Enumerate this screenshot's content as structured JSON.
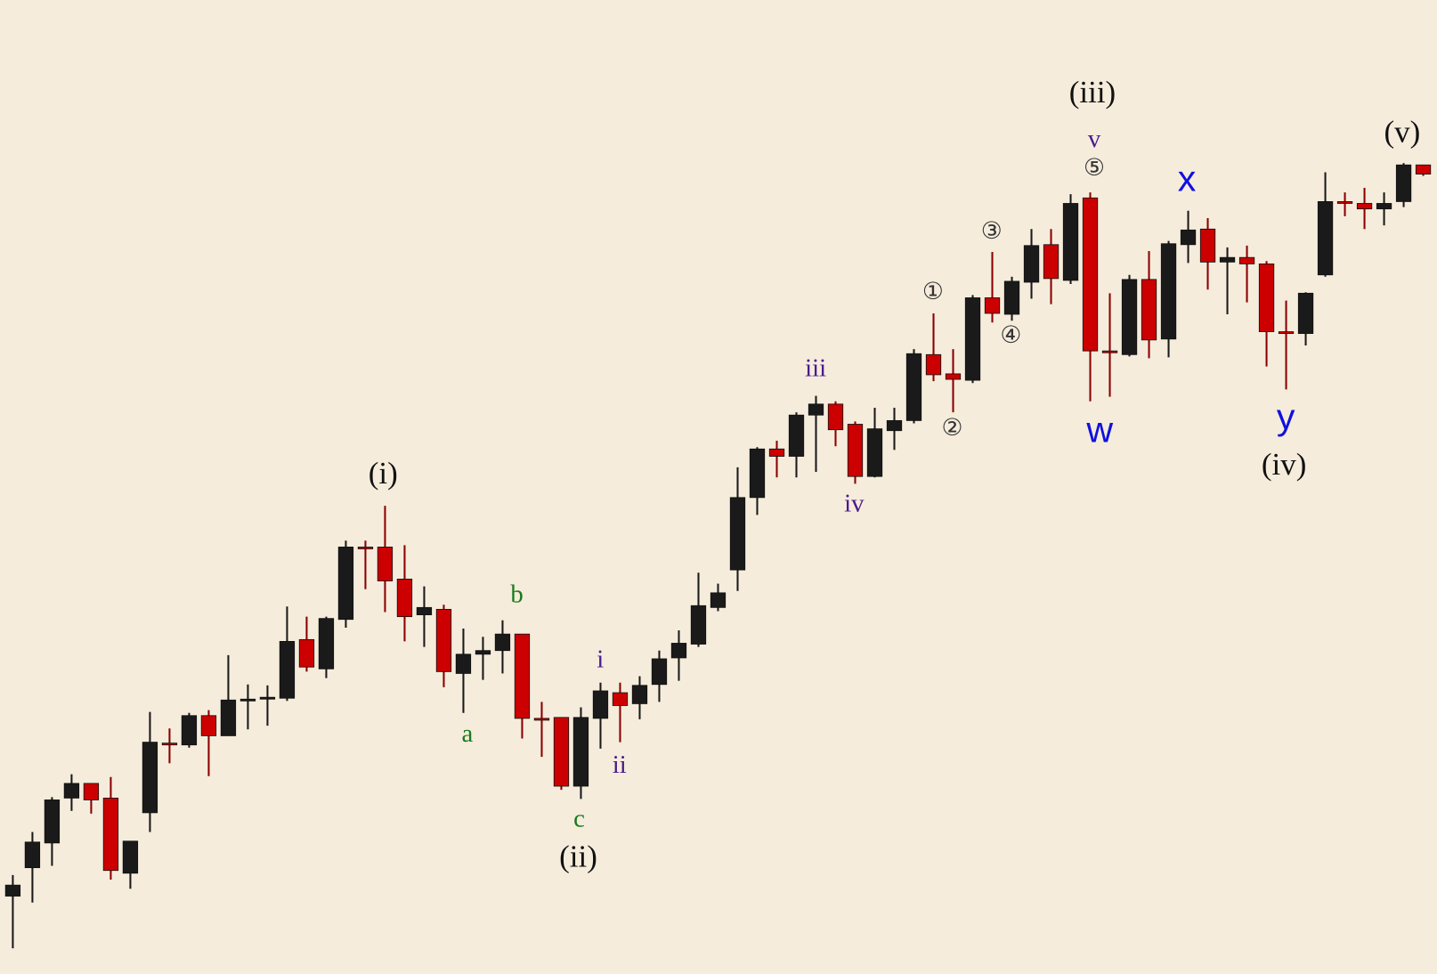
{
  "chart_data": {
    "type": "candlestick",
    "ylim": [
      0,
      1063
    ],
    "background": "#f5ecdc",
    "up_color": "#1a1a1a",
    "down_color": "#cc0000",
    "up_wick_color": "#1a1a1a",
    "down_wick_color": "#8b0000",
    "series": [
      {
        "open": [
          85,
          116,
          143,
          192,
          208,
          192,
          110,
          176,
          252,
          250,
          282,
          260,
          298,
          300,
          301,
          365,
          333,
          387,
          466,
          466,
          431,
          392,
          398,
          328,
          349,
          353,
          371,
          279,
          280,
          205,
          279,
          307,
          295,
          316,
          345,
          360,
          400,
          441,
          520,
          573,
          565,
          610,
          622,
          600,
          543,
          593,
          604,
          676,
          655,
          648,
          738,
          720,
          755,
          796,
          757,
          847,
          680,
          676,
          758,
          693,
          796,
          813,
          777,
          782,
          775,
          701,
          699,
          763,
          843,
          841,
          835,
          843,
          883
        ],
        "high": [
          108,
          155,
          193,
          218,
          208,
          215,
          145,
          286,
          268,
          285,
          288,
          348,
          316,
          315,
          401,
          390,
          390,
          473,
          473,
          511,
          468,
          423,
          403,
          377,
          368,
          386,
          371,
          297,
          280,
          291,
          318,
          318,
          325,
          353,
          375,
          438,
          426,
          553,
          575,
          582,
          613,
          631,
          625,
          603,
          618,
          618,
          682,
          721,
          682,
          741,
          788,
          761,
          813,
          813,
          851,
          853,
          743,
          763,
          789,
          800,
          833,
          825,
          793,
          795,
          778,
          735,
          744,
          875,
          853,
          858,
          853,
          885,
          883
        ],
        "low": [
          28,
          78,
          118,
          178,
          175,
          103,
          93,
          155,
          230,
          247,
          216,
          260,
          267,
          271,
          298,
          330,
          323,
          378,
          420,
          395,
          363,
          357,
          313,
          285,
          321,
          328,
          257,
          237,
          201,
          191,
          246,
          253,
          278,
          297,
          320,
          357,
          396,
          418,
          501,
          542,
          542,
          548,
          576,
          535,
          542,
          572,
          601,
          647,
          613,
          645,
          711,
          713,
          737,
          731,
          753,
          625,
          630,
          674,
          672,
          673,
          776,
          747,
          720,
          733,
          663,
          638,
          686,
          761,
          827,
          813,
          817,
          837,
          871
        ],
        "close": [
          97,
          144,
          190,
          208,
          190,
          113,
          145,
          253,
          250,
          282,
          260,
          299,
          300,
          302,
          363,
          335,
          388,
          466,
          464,
          429,
          390,
          400,
          330,
          349,
          353,
          371,
          279,
          277,
          205,
          280,
          309,
          293,
          315,
          344,
          361,
          402,
          416,
          520,
          573,
          565,
          610,
          622,
          594,
          543,
          595,
          604,
          677,
          654,
          649,
          738,
          721,
          756,
          795,
          759,
          841,
          680,
          678,
          758,
          692,
          797,
          812,
          777,
          782,
          775,
          701,
          699,
          743,
          843,
          841,
          835,
          841,
          883,
          873
        ]
      }
    ],
    "annotations": [
      {
        "text": "(i)",
        "color": "#111111"
      },
      {
        "text": "a",
        "color": "#1a7a1a"
      },
      {
        "text": "b",
        "color": "#1a7a1a"
      },
      {
        "text": "c",
        "color": "#1a7a1a"
      },
      {
        "text": "(ii)",
        "color": "#111111"
      },
      {
        "text": "i",
        "color": "#4b1a8c"
      },
      {
        "text": "ii",
        "color": "#4b1a8c"
      },
      {
        "text": "iii",
        "color": "#4b1a8c"
      },
      {
        "text": "iv",
        "color": "#4b1a8c"
      },
      {
        "text": "v",
        "color": "#4b1a8c"
      },
      {
        "text": "①",
        "color": "#333333"
      },
      {
        "text": "②",
        "color": "#333333"
      },
      {
        "text": "③",
        "color": "#333333"
      },
      {
        "text": "④",
        "color": "#333333"
      },
      {
        "text": "⑤",
        "color": "#333333"
      },
      {
        "text": "(iii)",
        "color": "#111111"
      },
      {
        "text": "w",
        "color": "#1010e0"
      },
      {
        "text": "x",
        "color": "#1010e0"
      },
      {
        "text": "y",
        "color": "#1010e0"
      },
      {
        "text": "(iv)",
        "color": "#111111"
      },
      {
        "text": "(v)",
        "color": "#111111"
      }
    ]
  }
}
